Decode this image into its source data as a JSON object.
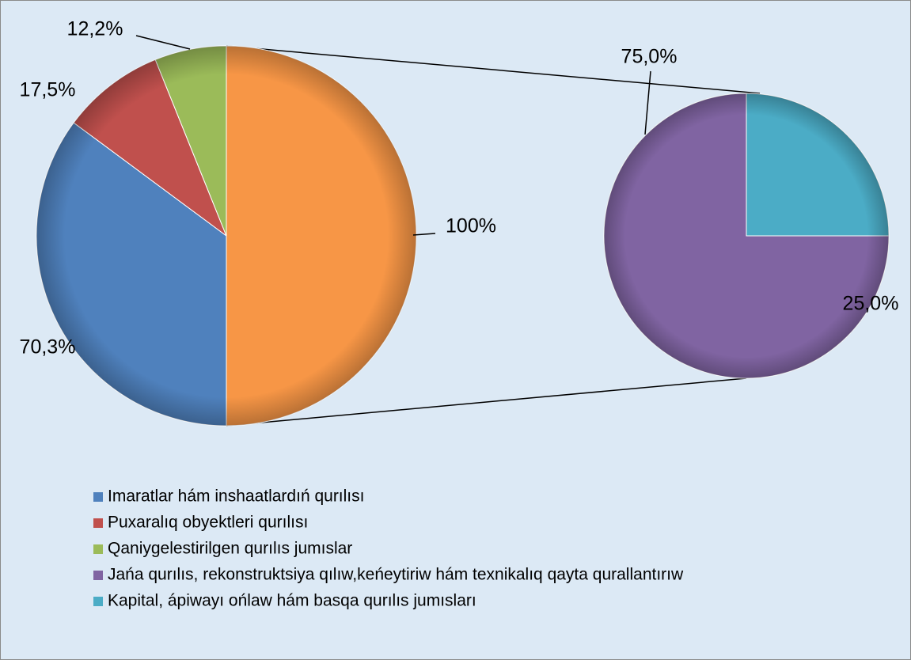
{
  "chart_data": {
    "type": "pie-of-pie",
    "categories": [
      "Imaratlar hám inshaatlardıń qurılısı",
      "Puxaralıq obyektleri qurılısı",
      "Qaniygelestirilgen qurılıs jumıslar",
      "Jańa qurılıs, rekonstruktsiya qılıw,keńeytiriw hám texnikalıq qayta qurallantırıw",
      "Kapital, ápiwayı ońlaw hám basqa qurılıs jumısları"
    ],
    "pies": [
      {
        "values": [
          70.3,
          17.5,
          12.2,
          100
        ],
        "value_labels": [
          "70,3%",
          "17,5%",
          "12,2%",
          "100%"
        ],
        "colors": [
          "#4f81bd",
          "#c0504d",
          "#9bbb59",
          "#f79646"
        ]
      },
      {
        "values": [
          75,
          25
        ],
        "value_labels": [
          "75,0%",
          "25,0%"
        ],
        "colors": [
          "#8064a2",
          "#4bacc6"
        ]
      }
    ]
  }
}
